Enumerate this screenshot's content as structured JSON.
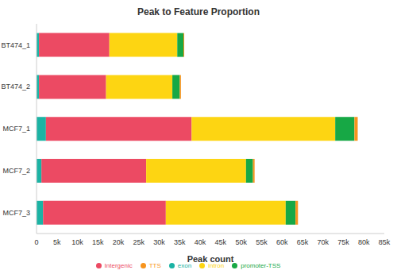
{
  "chart_data": {
    "type": "bar",
    "title": "Peak to Feature Proportion",
    "x_label": "Peak count",
    "orientation": "horizontal",
    "stacked": true,
    "grid": false,
    "legend": "bottom",
    "categories": [
      "BT474_1",
      "BT474_2",
      "MCF7_1",
      "MCF7_2",
      "MCF7_3"
    ],
    "series": [
      {
        "name": "exon",
        "color": "#1bb3a4",
        "values": [
          600,
          600,
          2300,
          1200,
          1600
        ]
      },
      {
        "name": "Intergenic",
        "color": "#ec4a63",
        "values": [
          17200,
          16400,
          35600,
          25600,
          30000
        ]
      },
      {
        "name": "intron",
        "color": "#fdd512",
        "values": [
          16600,
          16200,
          35100,
          24400,
          29300
        ]
      },
      {
        "name": "promoter-TSS",
        "color": "#17a845",
        "values": [
          1500,
          1800,
          4700,
          1700,
          2400
        ]
      },
      {
        "name": "TTS",
        "color": "#f7941d",
        "values": [
          200,
          300,
          800,
          400,
          600
        ]
      }
    ],
    "xlim": [
      0,
      85000
    ],
    "xticks": [
      0,
      {
        "value": 5000,
        "label": "5k"
      },
      {
        "value": 10000,
        "label": "10k"
      },
      {
        "value": 15000,
        "label": "15k"
      },
      {
        "value": 20000,
        "label": "20k"
      },
      {
        "value": 25000,
        "label": "25k"
      },
      {
        "value": 30000,
        "label": "30k"
      },
      {
        "value": 35000,
        "label": "35k"
      },
      {
        "value": 40000,
        "label": "40k"
      },
      {
        "value": 45000,
        "label": "45k"
      },
      {
        "value": 50000,
        "label": "50k"
      },
      {
        "value": 55000,
        "label": "55k"
      },
      {
        "value": 60000,
        "label": "60k"
      },
      {
        "value": 65000,
        "label": "65k"
      },
      {
        "value": 70000,
        "label": "70k"
      },
      {
        "value": 75000,
        "label": "75k"
      },
      {
        "value": 80000,
        "label": "80k"
      },
      {
        "value": 85000,
        "label": "85k"
      }
    ]
  }
}
